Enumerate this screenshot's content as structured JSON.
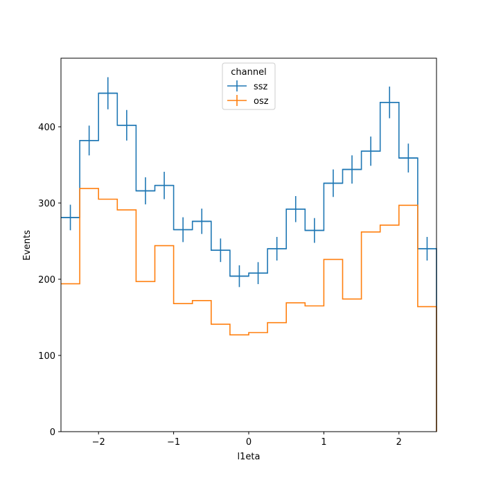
{
  "chart_data": {
    "type": "histogram-step",
    "xlabel": "l1eta",
    "ylabel": "Events",
    "xlim": [
      -2.5,
      2.5
    ],
    "ylim": [
      0,
      490
    ],
    "x_ticks": [
      -2,
      -1,
      0,
      1,
      2
    ],
    "x_tick_labels": [
      "−2",
      "−1",
      "0",
      "1",
      "2"
    ],
    "y_ticks": [
      0,
      100,
      200,
      300,
      400
    ],
    "y_tick_labels": [
      "0",
      "100",
      "200",
      "300",
      "400"
    ],
    "bin_edges": [
      -2.5,
      -2.25,
      -2.0,
      -1.75,
      -1.5,
      -1.25,
      -1.0,
      -0.75,
      -0.5,
      -0.25,
      0.0,
      0.25,
      0.5,
      0.75,
      1.0,
      1.25,
      1.5,
      1.75,
      2.0,
      2.25,
      2.5
    ],
    "legend": {
      "title": "channel",
      "placement": "upper center"
    },
    "series": [
      {
        "name": "ssz",
        "color": "#1f77b4",
        "error_bars": true,
        "values": [
          281,
          382,
          444,
          402,
          316,
          323,
          265,
          276,
          238,
          204,
          208,
          240,
          292,
          264,
          326,
          344,
          368,
          432,
          359,
          240
        ]
      },
      {
        "name": "osz",
        "color": "#ff7f0e",
        "error_bars": false,
        "values": [
          194,
          319,
          305,
          291,
          197,
          244,
          168,
          172,
          141,
          127,
          130,
          143,
          169,
          165,
          226,
          174,
          262,
          271,
          297,
          164
        ]
      }
    ]
  }
}
